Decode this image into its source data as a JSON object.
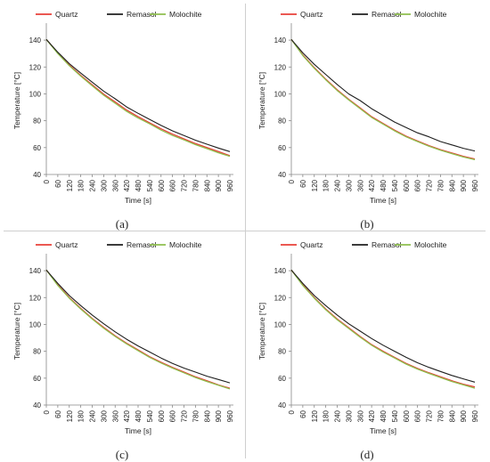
{
  "chart_data": [
    {
      "type": "line",
      "caption": "(a)",
      "xlabel": "Time [s]",
      "ylabel": "Temperature [°C]",
      "ylim": [
        40,
        150
      ],
      "yticks": [
        40,
        60,
        80,
        100,
        120,
        140
      ],
      "x": [
        0,
        60,
        120,
        180,
        240,
        300,
        360,
        420,
        480,
        540,
        600,
        660,
        720,
        780,
        840,
        900,
        960
      ],
      "legend_position": "top",
      "grid": false,
      "series": [
        {
          "name": "Quartz",
          "color": "#e8403a",
          "values": [
            140.5,
            130.5,
            121.5,
            113.8,
            106.8,
            99.8,
            94.0,
            88.0,
            83.0,
            78.5,
            74.0,
            70.0,
            66.5,
            63.0,
            60.0,
            57.0,
            54.0
          ]
        },
        {
          "name": "Remasol",
          "color": "#1f1f1f",
          "values": [
            140.5,
            131.0,
            122.5,
            115.5,
            108.7,
            102.0,
            96.3,
            90.3,
            85.5,
            81.0,
            76.5,
            72.5,
            69.0,
            65.5,
            62.5,
            59.7,
            57.0
          ]
        },
        {
          "name": "Molochite",
          "color": "#8fbf4f",
          "values": [
            140.5,
            130.0,
            121.0,
            113.2,
            106.0,
            99.0,
            93.0,
            87.0,
            82.0,
            77.7,
            73.0,
            69.0,
            65.7,
            62.2,
            59.2,
            56.2,
            53.5
          ]
        }
      ]
    },
    {
      "type": "line",
      "caption": "(b)",
      "xlabel": "Time [s]",
      "ylabel": "Temperature [°C]",
      "ylim": [
        40,
        150
      ],
      "yticks": [
        40,
        60,
        80,
        100,
        120,
        140
      ],
      "x": [
        0,
        60,
        120,
        180,
        240,
        300,
        360,
        420,
        480,
        540,
        600,
        660,
        720,
        780,
        840,
        900,
        960
      ],
      "legend_position": "top",
      "grid": false,
      "series": [
        {
          "name": "Quartz",
          "color": "#e8403a",
          "values": [
            140.5,
            129.0,
            119.5,
            111.0,
            103.0,
            96.0,
            89.5,
            83.0,
            78.0,
            73.0,
            68.5,
            65.0,
            61.5,
            58.5,
            56.0,
            53.5,
            51.5
          ]
        },
        {
          "name": "Remasol",
          "color": "#1f1f1f",
          "values": [
            140.5,
            130.5,
            122.0,
            114.5,
            107.0,
            100.0,
            95.0,
            89.0,
            84.0,
            79.0,
            75.0,
            71.0,
            68.0,
            64.5,
            62.0,
            59.5,
            57.5
          ]
        },
        {
          "name": "Molochite",
          "color": "#8fbf4f",
          "values": [
            140.5,
            128.5,
            119.0,
            110.5,
            102.5,
            95.5,
            89.0,
            82.5,
            77.5,
            72.5,
            68.0,
            64.5,
            61.0,
            58.0,
            55.5,
            53.0,
            51.0
          ]
        }
      ]
    },
    {
      "type": "line",
      "caption": "(c)",
      "xlabel": "Time [s]",
      "ylabel": "Temperature [°C]",
      "ylim": [
        40,
        150
      ],
      "yticks": [
        40,
        60,
        80,
        100,
        120,
        140
      ],
      "x": [
        0,
        60,
        120,
        180,
        240,
        300,
        360,
        420,
        480,
        540,
        600,
        660,
        720,
        780,
        840,
        900,
        960
      ],
      "legend_position": "top",
      "grid": false,
      "series": [
        {
          "name": "Quartz",
          "color": "#e8403a",
          "values": [
            140.5,
            129.5,
            120.0,
            112.0,
            104.5,
            97.8,
            91.5,
            86.0,
            81.0,
            76.0,
            71.8,
            68.0,
            64.5,
            61.0,
            58.0,
            55.0,
            52.5
          ]
        },
        {
          "name": "Remasol",
          "color": "#1f1f1f",
          "values": [
            140.5,
            130.5,
            121.5,
            114.0,
            107.0,
            100.5,
            94.5,
            89.0,
            84.0,
            79.5,
            75.0,
            71.0,
            67.5,
            64.5,
            61.5,
            59.0,
            56.5
          ]
        },
        {
          "name": "Molochite",
          "color": "#8fbf4f",
          "values": [
            140.5,
            129.0,
            119.5,
            111.5,
            104.0,
            97.2,
            91.0,
            85.5,
            80.5,
            75.5,
            71.3,
            67.5,
            64.0,
            60.5,
            57.5,
            54.7,
            52.0
          ]
        }
      ]
    },
    {
      "type": "line",
      "caption": "(d)",
      "xlabel": "Time [s]",
      "ylabel": "Temperature [°C]",
      "ylim": [
        40,
        150
      ],
      "yticks": [
        40,
        60,
        80,
        100,
        120,
        140
      ],
      "x": [
        0,
        60,
        120,
        180,
        240,
        300,
        360,
        420,
        480,
        540,
        600,
        660,
        720,
        780,
        840,
        900,
        960
      ],
      "legend_position": "top",
      "grid": false,
      "series": [
        {
          "name": "Quartz",
          "color": "#e8403a",
          "values": [
            140.5,
            129.5,
            120.0,
            111.5,
            104.0,
            97.5,
            91.0,
            85.0,
            80.0,
            75.5,
            71.0,
            67.3,
            64.0,
            61.0,
            58.0,
            55.5,
            53.5
          ]
        },
        {
          "name": "Remasol",
          "color": "#1f1f1f",
          "values": [
            140.5,
            130.5,
            121.5,
            114.0,
            107.0,
            100.5,
            95.0,
            89.5,
            84.5,
            80.0,
            75.5,
            71.5,
            68.0,
            65.0,
            62.0,
            59.5,
            57.0
          ]
        },
        {
          "name": "Molochite",
          "color": "#8fbf4f",
          "values": [
            140.5,
            129.0,
            119.5,
            111.0,
            103.5,
            97.0,
            90.5,
            84.5,
            79.5,
            75.0,
            70.5,
            66.8,
            63.5,
            60.5,
            57.5,
            55.0,
            52.5
          ]
        }
      ]
    }
  ]
}
